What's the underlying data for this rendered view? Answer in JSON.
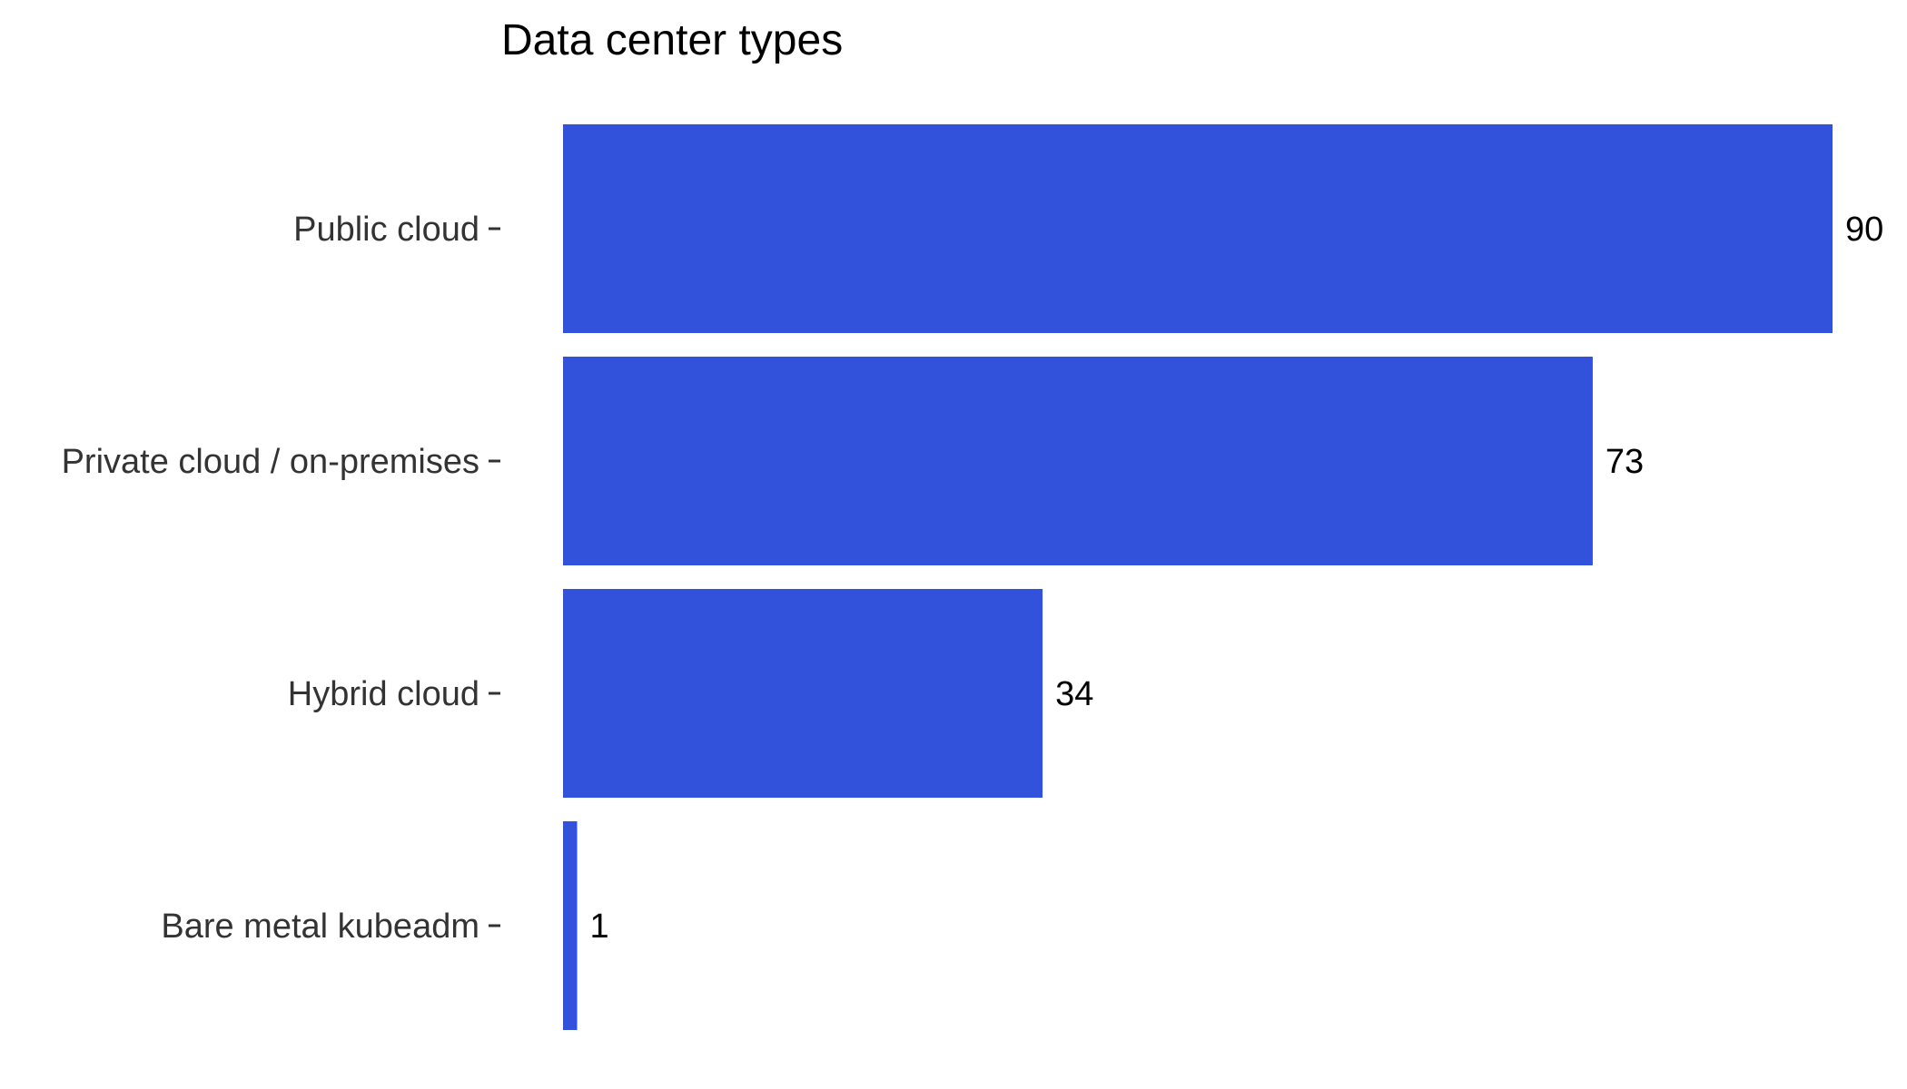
{
  "chart_data": {
    "type": "bar",
    "orientation": "horizontal",
    "title": "Data center types",
    "xlabel": "",
    "ylabel": "",
    "categories": [
      "Public cloud",
      "Private cloud / on-premises",
      "Hybrid cloud",
      "Bare metal kubeadm"
    ],
    "values": [
      90,
      73,
      34,
      1
    ],
    "xlim": [
      0,
      90
    ],
    "grid": false,
    "legend": "none",
    "bar_color": "#3352DB",
    "data_labels": [
      "90",
      "73",
      "34",
      "1"
    ]
  }
}
